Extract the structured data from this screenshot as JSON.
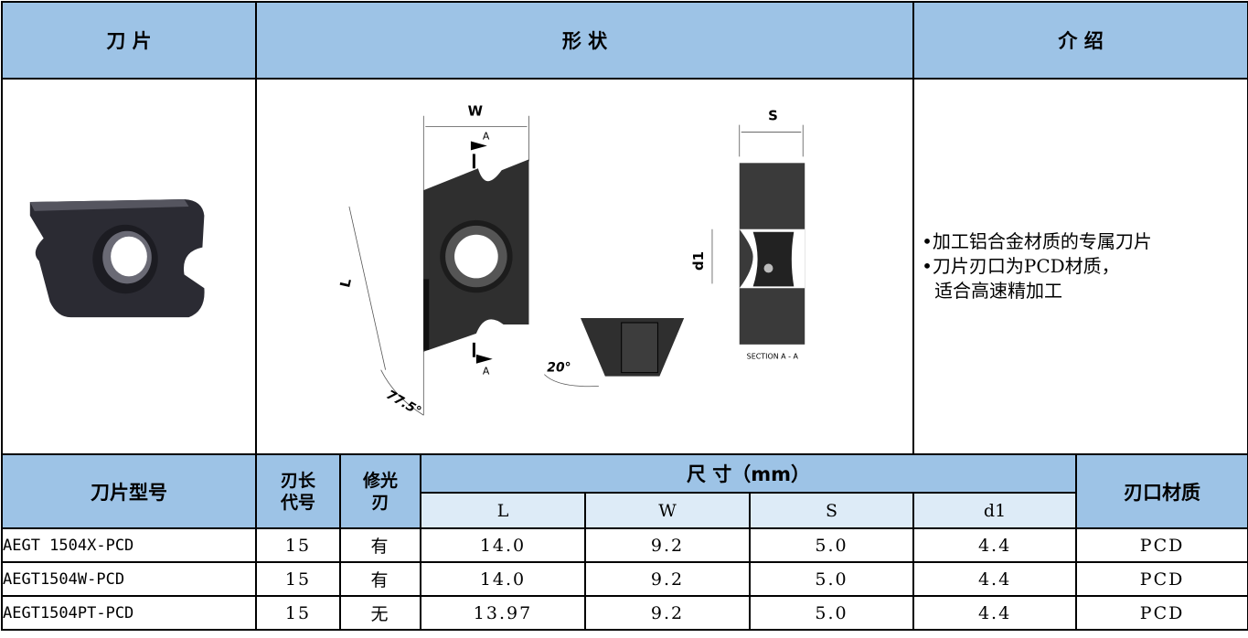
{
  "header": {
    "insert": "刀 片",
    "shape": "形 状",
    "intro": "介 绍"
  },
  "intro": {
    "lines": [
      "•加工铝合金材质的专属刀片",
      "•刀片刃口为PCD材质，",
      "适合高速精加工"
    ]
  },
  "drawing": {
    "labels": {
      "w": "W",
      "s": "S",
      "a_top": "A",
      "a_bottom": "A",
      "l": "L",
      "d1": "d1",
      "angle_side": "20°",
      "angle_front": "77.5°",
      "section": "SECTION A - A"
    }
  },
  "table": {
    "header": {
      "model": "刀片型号",
      "length_code": [
        "刃长",
        "代号"
      ],
      "wiper": [
        "修光",
        "刃"
      ],
      "size": "尺 寸（mm）",
      "l": "L",
      "w": "W",
      "s": "S",
      "d1": "d1",
      "material": "刃口材质"
    },
    "rows": [
      [
        "AEGT 1504X-PCD",
        "15",
        "有",
        "14.0",
        "9.2",
        "5.0",
        "4.4",
        "PCD"
      ],
      [
        "AEGT1504W-PCD",
        "15",
        "有",
        "14.0",
        "9.2",
        "5.0",
        "4.4",
        "PCD"
      ],
      [
        "AEGT1504PT-PCD",
        "15",
        "无",
        "13.97",
        "9.2",
        "5.0",
        "4.4",
        "PCD"
      ]
    ]
  }
}
